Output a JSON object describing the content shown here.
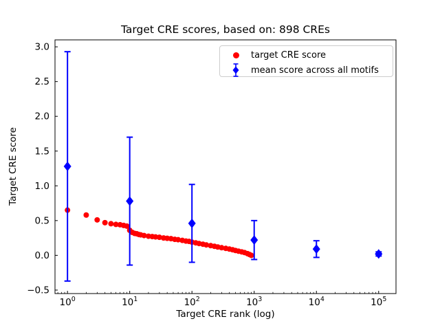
{
  "chart_data": {
    "type": "scatter",
    "title": "Target CRE scores, based on: 898 CREs",
    "xlabel": "Target CRE rank (log)",
    "ylabel": "Target CRE score",
    "x_scale": "log",
    "xlim": [
      0.63,
      190000
    ],
    "ylim": [
      -0.55,
      3.1
    ],
    "grid": false,
    "legend_position": "upper right",
    "colors": {
      "target": "#ff0000",
      "mean": "#0000ff",
      "axis": "#000000",
      "legend_border": "#cccccc"
    },
    "xticks": [
      {
        "v": 1,
        "base": "10",
        "exp": "0"
      },
      {
        "v": 10,
        "base": "10",
        "exp": "1"
      },
      {
        "v": 100,
        "base": "10",
        "exp": "2"
      },
      {
        "v": 1000,
        "base": "10",
        "exp": "3"
      },
      {
        "v": 10000,
        "base": "10",
        "exp": "4"
      },
      {
        "v": 100000,
        "base": "10",
        "exp": "5"
      }
    ],
    "yticks": [
      {
        "v": -0.5,
        "label": "−0.5"
      },
      {
        "v": 0.0,
        "label": "0.0"
      },
      {
        "v": 0.5,
        "label": "0.5"
      },
      {
        "v": 1.0,
        "label": "1.0"
      },
      {
        "v": 1.5,
        "label": "1.5"
      },
      {
        "v": 2.0,
        "label": "2.0"
      },
      {
        "v": 2.5,
        "label": "2.5"
      },
      {
        "v": 3.0,
        "label": "3.0"
      }
    ],
    "series": [
      {
        "name": "target CRE score",
        "marker": "circle",
        "color": "#ff0000",
        "error_bars": false,
        "points": [
          [
            1,
            0.65
          ],
          [
            2,
            0.58
          ],
          [
            3,
            0.51
          ],
          [
            4,
            0.47
          ],
          [
            5,
            0.455
          ],
          [
            6,
            0.445
          ],
          [
            7,
            0.44
          ],
          [
            8,
            0.43
          ],
          [
            9,
            0.42
          ],
          [
            10,
            0.36
          ],
          [
            11,
            0.33
          ],
          [
            12,
            0.315
          ],
          [
            13,
            0.31
          ],
          [
            14,
            0.3
          ],
          [
            15,
            0.295
          ],
          [
            17,
            0.285
          ],
          [
            20,
            0.275
          ],
          [
            23,
            0.27
          ],
          [
            26,
            0.265
          ],
          [
            30,
            0.26
          ],
          [
            35,
            0.25
          ],
          [
            40,
            0.245
          ],
          [
            46,
            0.24
          ],
          [
            53,
            0.23
          ],
          [
            60,
            0.225
          ],
          [
            70,
            0.215
          ],
          [
            80,
            0.205
          ],
          [
            90,
            0.2
          ],
          [
            100,
            0.19
          ],
          [
            115,
            0.18
          ],
          [
            130,
            0.17
          ],
          [
            150,
            0.16
          ],
          [
            170,
            0.15
          ],
          [
            200,
            0.14
          ],
          [
            230,
            0.13
          ],
          [
            260,
            0.12
          ],
          [
            300,
            0.11
          ],
          [
            350,
            0.1
          ],
          [
            400,
            0.09
          ],
          [
            450,
            0.08
          ],
          [
            500,
            0.07
          ],
          [
            560,
            0.06
          ],
          [
            630,
            0.05
          ],
          [
            700,
            0.04
          ],
          [
            780,
            0.025
          ],
          [
            840,
            0.012
          ],
          [
            898,
            0.0
          ]
        ]
      },
      {
        "name": "mean score across all motifs",
        "marker": "diamond",
        "color": "#0000ff",
        "error_bars": true,
        "points": [
          [
            1,
            1.28,
            1.65
          ],
          [
            10,
            0.78,
            0.92
          ],
          [
            100,
            0.46,
            0.56
          ],
          [
            1000,
            0.22,
            0.28
          ],
          [
            10000,
            0.09,
            0.12
          ],
          [
            100000,
            0.02,
            0.03
          ]
        ]
      }
    ]
  }
}
